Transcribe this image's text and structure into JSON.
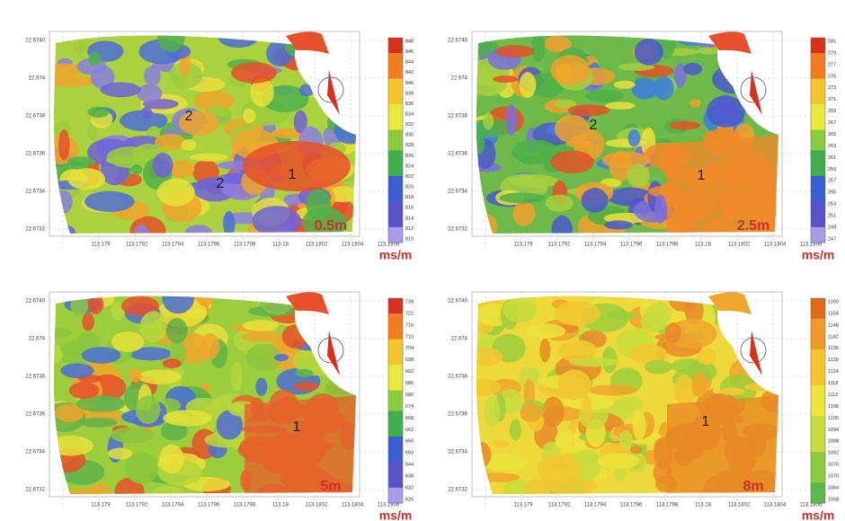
{
  "panels": [
    {
      "depth": "0.5m",
      "unit": "ms/m",
      "zones": [
        "2",
        "2",
        "1"
      ],
      "yticks": [
        "22.6740",
        "22.674",
        "22.6738",
        "22.6736",
        "22.6734",
        "22.6732"
      ],
      "xticks": [
        "113.179",
        "113.1792",
        "113.1794",
        "113.1796",
        "113.1798",
        "113.18",
        "113.1802",
        "113.1804",
        "113.1806"
      ],
      "colorbar_labels": [
        "848",
        "846",
        "844",
        "842",
        "840",
        "838",
        "836",
        "834",
        "832",
        "830",
        "828",
        "826",
        "824",
        "822",
        "820",
        "818",
        "816",
        "814",
        "812",
        "810"
      ]
    },
    {
      "depth": "2.5m",
      "unit": "ms/m",
      "zones": [
        "2",
        "1"
      ],
      "yticks": [
        "22.6740",
        "22.674",
        "22.6738",
        "22.6736",
        "22.6734",
        "22.6732"
      ],
      "xticks": [
        "113.179",
        "113.1792",
        "113.1794",
        "113.1796",
        "113.1798",
        "113.18",
        "113.1802",
        "113.1804",
        "113.1806"
      ],
      "colorbar_labels": [
        "281",
        "279",
        "277",
        "275",
        "273",
        "271",
        "269",
        "267",
        "265",
        "263",
        "261",
        "259",
        "257",
        "255",
        "253",
        "251",
        "249",
        "247"
      ]
    },
    {
      "depth": "5m",
      "unit": "ms/m",
      "zones": [
        "1"
      ],
      "yticks": [
        "22.6740",
        "22.674",
        "22.6738",
        "22.6736",
        "22.6734",
        "22.6732"
      ],
      "xticks": [
        "113.179",
        "113.1792",
        "113.1794",
        "113.1796",
        "113.1798",
        "113.18",
        "113.1802",
        "113.1804",
        "113.1806"
      ],
      "colorbar_labels": [
        "728",
        "722",
        "716",
        "710",
        "704",
        "698",
        "692",
        "686",
        "680",
        "674",
        "668",
        "662",
        "656",
        "650",
        "644",
        "638",
        "632",
        "626"
      ]
    },
    {
      "depth": "8m",
      "unit": "ms/m",
      "zones": [
        "1"
      ],
      "yticks": [
        "22.6740",
        "22.674",
        "22.6738",
        "22.6736",
        "22.6734",
        "22.6732"
      ],
      "xticks": [
        "113.179",
        "113.1792",
        "113.1794",
        "113.1796",
        "113.1798",
        "113.18",
        "113.1802",
        "113.1804",
        "113.1806"
      ],
      "colorbar_labels": [
        "1160",
        "1154",
        "1148",
        "1142",
        "1136",
        "1130",
        "1124",
        "1118",
        "1112",
        "1106",
        "1100",
        "1094",
        "1088",
        "1082",
        "1076",
        "1070",
        "1064",
        "1058"
      ]
    }
  ]
}
